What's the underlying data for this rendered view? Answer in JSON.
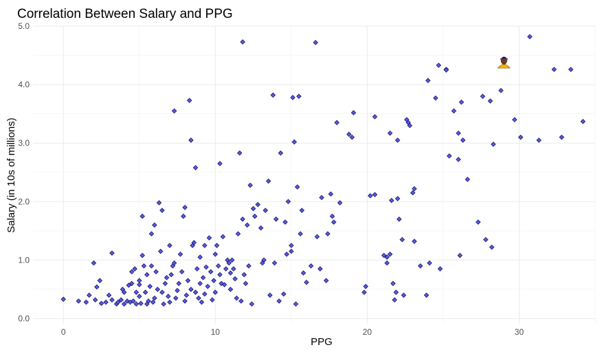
{
  "chart_data": {
    "type": "scatter",
    "title": "Correlation Between Salary and PPG",
    "xlabel": "PPG",
    "ylabel": "Salary (in 10s of millions)",
    "xlim": [
      -2,
      35
    ],
    "ylim": [
      -0.1,
      5.0
    ],
    "x_ticks": [
      0,
      10,
      20,
      30
    ],
    "x_tick_labels": [
      "0",
      "10",
      "20",
      "30"
    ],
    "y_ticks": [
      0.0,
      1.0,
      2.0,
      3.0,
      4.0,
      5.0
    ],
    "y_tick_labels": [
      "0.0",
      "1.0",
      "2.0",
      "3.0",
      "4.0",
      "5.0"
    ],
    "grid": true,
    "legend": "none",
    "point_color": "#5a5ae6",
    "point_outline": "#141464",
    "highlight_icon": "player-head-icon",
    "highlight_point": {
      "x": 29.0,
      "y": 4.4
    },
    "points": [
      [
        0.0,
        0.33
      ],
      [
        1.0,
        0.3
      ],
      [
        1.5,
        0.28
      ],
      [
        1.7,
        0.4
      ],
      [
        2.0,
        0.95
      ],
      [
        2.1,
        0.32
      ],
      [
        2.2,
        0.54
      ],
      [
        2.4,
        0.65
      ],
      [
        2.5,
        0.26
      ],
      [
        2.8,
        0.28
      ],
      [
        3.0,
        0.4
      ],
      [
        3.2,
        0.32
      ],
      [
        3.2,
        1.12
      ],
      [
        3.5,
        0.25
      ],
      [
        3.6,
        0.28
      ],
      [
        3.8,
        0.32
      ],
      [
        3.9,
        0.5
      ],
      [
        4.0,
        0.45
      ],
      [
        4.0,
        0.25
      ],
      [
        4.2,
        0.3
      ],
      [
        4.3,
        0.57
      ],
      [
        4.4,
        0.28
      ],
      [
        4.5,
        0.6
      ],
      [
        4.5,
        0.8
      ],
      [
        4.6,
        0.3
      ],
      [
        4.7,
        0.85
      ],
      [
        4.8,
        0.25
      ],
      [
        4.8,
        0.45
      ],
      [
        5.0,
        0.38
      ],
      [
        5.0,
        0.58
      ],
      [
        5.0,
        0.65
      ],
      [
        5.1,
        0.26
      ],
      [
        5.2,
        1.75
      ],
      [
        5.2,
        1.08
      ],
      [
        5.3,
        0.9
      ],
      [
        5.4,
        0.45
      ],
      [
        5.5,
        0.75
      ],
      [
        5.5,
        0.25
      ],
      [
        5.6,
        0.3
      ],
      [
        5.7,
        0.55
      ],
      [
        5.8,
        1.45
      ],
      [
        5.8,
        0.9
      ],
      [
        5.9,
        0.28
      ],
      [
        6.0,
        0.35
      ],
      [
        6.0,
        1.6
      ],
      [
        6.1,
        0.8
      ],
      [
        6.2,
        0.5
      ],
      [
        6.3,
        1.98
      ],
      [
        6.4,
        1.15
      ],
      [
        6.5,
        0.45
      ],
      [
        6.5,
        1.85
      ],
      [
        6.6,
        0.25
      ],
      [
        6.7,
        0.6
      ],
      [
        6.8,
        0.7
      ],
      [
        6.9,
        0.38
      ],
      [
        7.0,
        1.25
      ],
      [
        7.0,
        0.28
      ],
      [
        7.1,
        0.75
      ],
      [
        7.2,
        0.9
      ],
      [
        7.3,
        0.95
      ],
      [
        7.3,
        3.55
      ],
      [
        7.4,
        0.35
      ],
      [
        7.5,
        0.48
      ],
      [
        7.6,
        0.6
      ],
      [
        7.7,
        1.1
      ],
      [
        7.8,
        0.8
      ],
      [
        7.9,
        1.75
      ],
      [
        8.0,
        0.3
      ],
      [
        8.0,
        1.9
      ],
      [
        8.1,
        0.4
      ],
      [
        8.2,
        0.65
      ],
      [
        8.3,
        3.73
      ],
      [
        8.4,
        0.5
      ],
      [
        8.4,
        3.05
      ],
      [
        8.5,
        1.25
      ],
      [
        8.6,
        1.3
      ],
      [
        8.7,
        0.45
      ],
      [
        8.7,
        2.58
      ],
      [
        8.8,
        0.85
      ],
      [
        8.9,
        0.35
      ],
      [
        9.0,
        0.6
      ],
      [
        9.0,
        1.05
      ],
      [
        9.1,
        0.28
      ],
      [
        9.2,
        0.7
      ],
      [
        9.3,
        0.42
      ],
      [
        9.3,
        1.25
      ],
      [
        9.4,
        0.88
      ],
      [
        9.5,
        0.55
      ],
      [
        9.6,
        1.38
      ],
      [
        9.7,
        0.8
      ],
      [
        9.8,
        0.32
      ],
      [
        9.9,
        0.65
      ],
      [
        10.0,
        1.1
      ],
      [
        10.0,
        0.45
      ],
      [
        10.1,
        1.25
      ],
      [
        10.2,
        0.9
      ],
      [
        10.3,
        0.75
      ],
      [
        10.3,
        2.65
      ],
      [
        10.4,
        0.6
      ],
      [
        10.5,
        1.4
      ],
      [
        10.6,
        0.58
      ],
      [
        10.7,
        0.85
      ],
      [
        10.8,
        1.0
      ],
      [
        10.9,
        0.95
      ],
      [
        11.0,
        0.78
      ],
      [
        11.0,
        0.5
      ],
      [
        11.1,
        1.0
      ],
      [
        11.2,
        0.85
      ],
      [
        11.3,
        0.68
      ],
      [
        11.4,
        0.35
      ],
      [
        11.5,
        1.45
      ],
      [
        11.6,
        2.83
      ],
      [
        11.7,
        0.3
      ],
      [
        11.8,
        4.73
      ],
      [
        11.8,
        1.7
      ],
      [
        11.9,
        0.75
      ],
      [
        12.0,
        0.6
      ],
      [
        12.1,
        1.6
      ],
      [
        12.2,
        0.9
      ],
      [
        12.3,
        2.28
      ],
      [
        12.4,
        0.25
      ],
      [
        12.5,
        1.88
      ],
      [
        12.6,
        1.75
      ],
      [
        12.8,
        1.95
      ],
      [
        13.0,
        1.55
      ],
      [
        13.1,
        0.95
      ],
      [
        13.2,
        1.0
      ],
      [
        13.3,
        1.85
      ],
      [
        13.5,
        2.35
      ],
      [
        13.6,
        0.4
      ],
      [
        13.8,
        3.82
      ],
      [
        13.9,
        0.95
      ],
      [
        14.0,
        1.7
      ],
      [
        14.2,
        0.3
      ],
      [
        14.3,
        2.83
      ],
      [
        14.5,
        0.42
      ],
      [
        14.6,
        1.65
      ],
      [
        14.7,
        1.1
      ],
      [
        14.8,
        2.0
      ],
      [
        15.0,
        1.25
      ],
      [
        15.0,
        1.15
      ],
      [
        15.1,
        3.78
      ],
      [
        15.2,
        3.02
      ],
      [
        15.3,
        0.25
      ],
      [
        15.4,
        2.25
      ],
      [
        15.5,
        3.8
      ],
      [
        15.6,
        1.45
      ],
      [
        15.7,
        1.85
      ],
      [
        15.8,
        0.78
      ],
      [
        16.0,
        0.62
      ],
      [
        16.3,
        0.9
      ],
      [
        16.6,
        4.72
      ],
      [
        16.7,
        1.4
      ],
      [
        16.9,
        0.85
      ],
      [
        17.0,
        2.07
      ],
      [
        17.3,
        0.65
      ],
      [
        17.4,
        1.45
      ],
      [
        17.6,
        2.13
      ],
      [
        17.7,
        1.75
      ],
      [
        17.8,
        1.65
      ],
      [
        18.0,
        3.35
      ],
      [
        18.2,
        1.98
      ],
      [
        18.8,
        3.15
      ],
      [
        19.0,
        3.1
      ],
      [
        19.1,
        3.52
      ],
      [
        19.8,
        0.45
      ],
      [
        19.9,
        0.55
      ],
      [
        20.2,
        2.1
      ],
      [
        20.5,
        2.12
      ],
      [
        20.5,
        3.45
      ],
      [
        21.1,
        1.08
      ],
      [
        21.3,
        1.05
      ],
      [
        21.3,
        0.95
      ],
      [
        21.5,
        1.1
      ],
      [
        21.5,
        3.17
      ],
      [
        21.6,
        2.02
      ],
      [
        21.7,
        0.6
      ],
      [
        21.8,
        0.32
      ],
      [
        21.9,
        0.45
      ],
      [
        22.0,
        3.05
      ],
      [
        22.0,
        2.05
      ],
      [
        22.1,
        1.7
      ],
      [
        22.3,
        1.35
      ],
      [
        22.4,
        0.4
      ],
      [
        22.6,
        3.4
      ],
      [
        22.7,
        3.35
      ],
      [
        22.8,
        3.3
      ],
      [
        23.0,
        2.15
      ],
      [
        23.1,
        2.22
      ],
      [
        23.1,
        1.32
      ],
      [
        23.5,
        0.9
      ],
      [
        23.9,
        0.4
      ],
      [
        24.0,
        4.07
      ],
      [
        24.1,
        0.95
      ],
      [
        24.5,
        3.77
      ],
      [
        24.7,
        4.33
      ],
      [
        24.8,
        0.85
      ],
      [
        25.2,
        4.26
      ],
      [
        25.2,
        4.25
      ],
      [
        25.4,
        2.78
      ],
      [
        25.7,
        3.55
      ],
      [
        26.0,
        3.17
      ],
      [
        26.0,
        2.72
      ],
      [
        26.1,
        1.08
      ],
      [
        26.2,
        3.7
      ],
      [
        26.3,
        3.05
      ],
      [
        26.6,
        2.38
      ],
      [
        27.3,
        1.65
      ],
      [
        27.6,
        3.8
      ],
      [
        27.8,
        1.35
      ],
      [
        28.1,
        3.72
      ],
      [
        28.2,
        1.22
      ],
      [
        28.3,
        2.98
      ],
      [
        28.8,
        3.9
      ],
      [
        29.7,
        3.4
      ],
      [
        30.1,
        3.1
      ],
      [
        30.7,
        4.82
      ],
      [
        31.3,
        3.05
      ],
      [
        32.3,
        4.26
      ],
      [
        32.8,
        3.1
      ],
      [
        33.4,
        4.26
      ],
      [
        34.2,
        3.37
      ]
    ]
  }
}
